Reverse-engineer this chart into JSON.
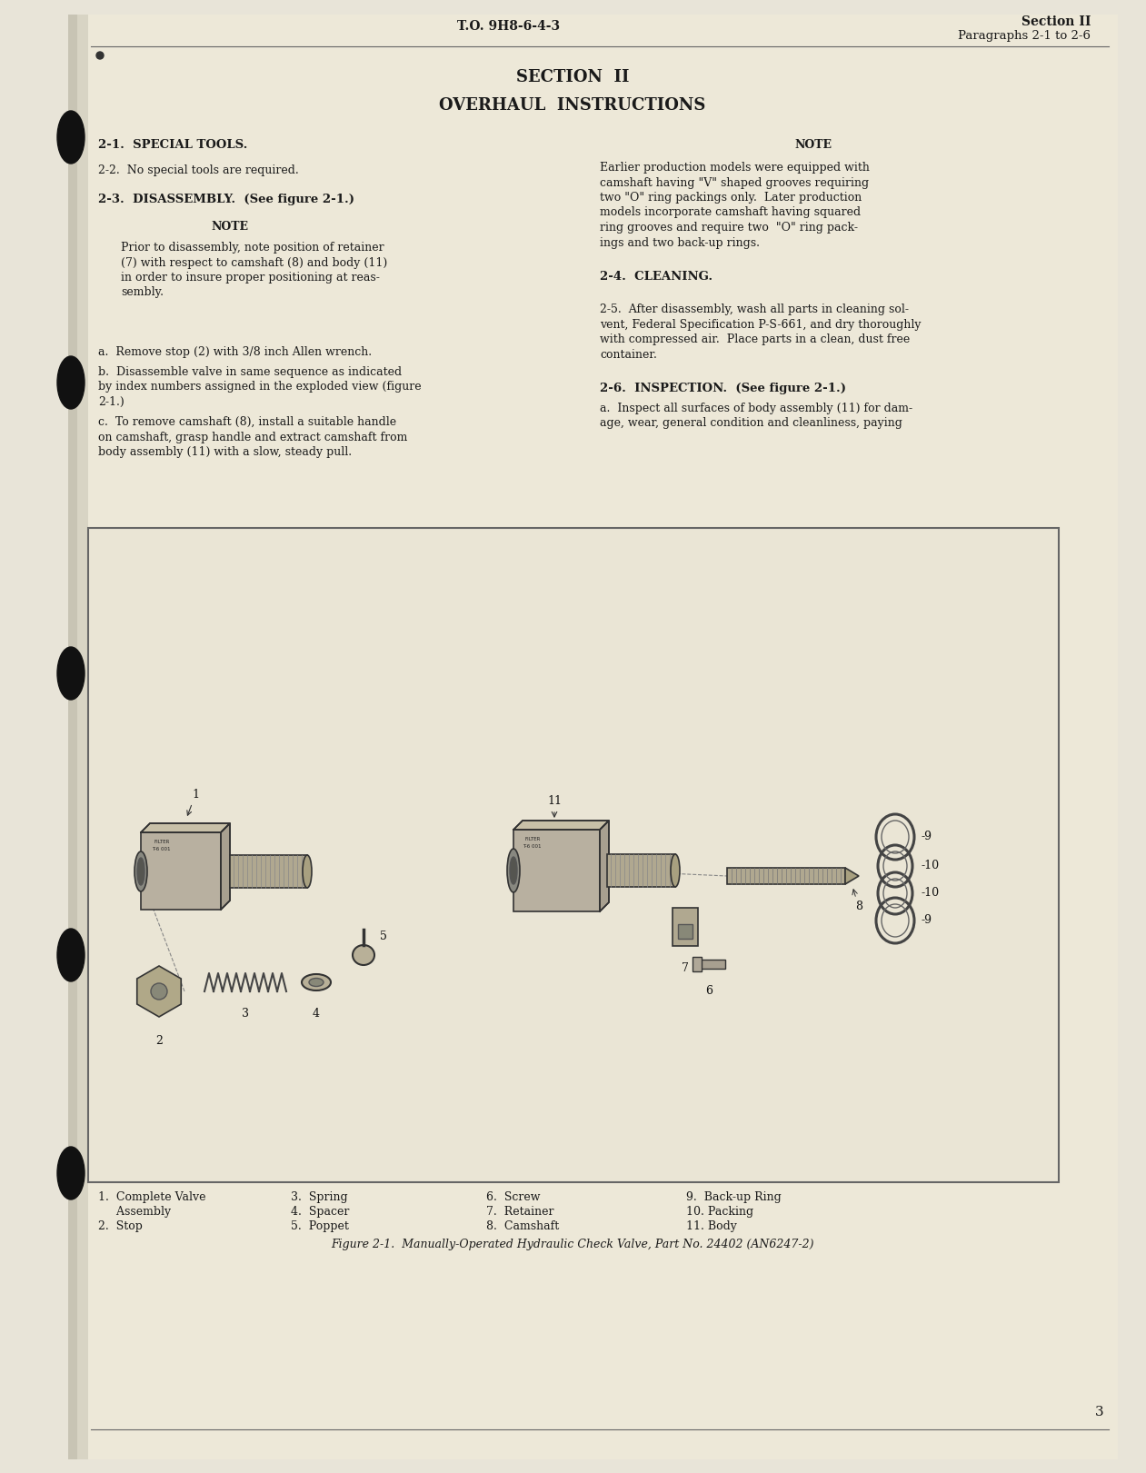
{
  "bg_color": "#e8e4d8",
  "page_color": "#ede8d8",
  "text_color": "#1a1a1a",
  "header_left": "T.O. 9H8-6-4-3",
  "header_right_line1": "Section II",
  "header_right_line2": "Paragraphs 2-1 to 2-6",
  "title1": "SECTION  II",
  "title2": "OVERHAUL  INSTRUCTIONS",
  "section_21_head": "2-1.  SPECIAL TOOLS.",
  "section_21_body": "2-2.  No special tools are required.",
  "section_23_head": "2-3.  DISASSEMBLY.  (See figure 2-1.)",
  "note_head_left": "NOTE",
  "note_body_left_lines": [
    "Prior to disassembly, note position of retainer",
    "(7) with respect to camshaft (8) and body (11)",
    "in order to insure proper positioning at reas-",
    "sembly."
  ],
  "para_a": "a.  Remove stop (2) with 3/8 inch Allen wrench.",
  "para_b_lines": [
    "b.  Disassemble valve in same sequence as indicated",
    "by index numbers assigned in the exploded view (figure",
    "2-1.)"
  ],
  "para_c_lines": [
    "c.  To remove camshaft (8), install a suitable handle",
    "on camshaft, grasp handle and extract camshaft from",
    "body assembly (11) with a slow, steady pull."
  ],
  "note_head_right": "NOTE",
  "note_body_right_lines": [
    "Earlier production models were equipped with",
    "camshaft having \"V\" shaped grooves requiring",
    "two \"O\" ring packings only.  Later production",
    "models incorporate camshaft having squared",
    "ring grooves and require two  \"O\" ring pack-",
    "ings and two back-up rings."
  ],
  "section_24_head": "2-4.  CLEANING.",
  "section_25_lines": [
    "2-5.  After disassembly, wash all parts in cleaning sol-",
    "vent, Federal Specification P-S-661, and dry thoroughly",
    "with compressed air.  Place parts in a clean, dust free",
    "container."
  ],
  "section_26_head": "2-6.  INSPECTION.  (See figure 2-1.)",
  "section_26_lines": [
    "a.  Inspect all surfaces of body assembly (11) for dam-",
    "age, wear, general condition and cleanliness, paying"
  ],
  "legend_col1": [
    "1.  Complete Valve",
    "     Assembly",
    "2.  Stop"
  ],
  "legend_col2": [
    "3.  Spring",
    "4.  Spacer",
    "5.  Poppet"
  ],
  "legend_col3": [
    "6.  Screw",
    "7.  Retainer",
    "8.  Camshaft"
  ],
  "legend_col4": [
    "9.  Back-up Ring",
    "10. Packing",
    "11. Body"
  ],
  "fig_caption": "Figure 2-1.  Manually-Operated Hydraulic Check Valve, Part No. 24402 (AN6247-2)",
  "page_number": "3"
}
